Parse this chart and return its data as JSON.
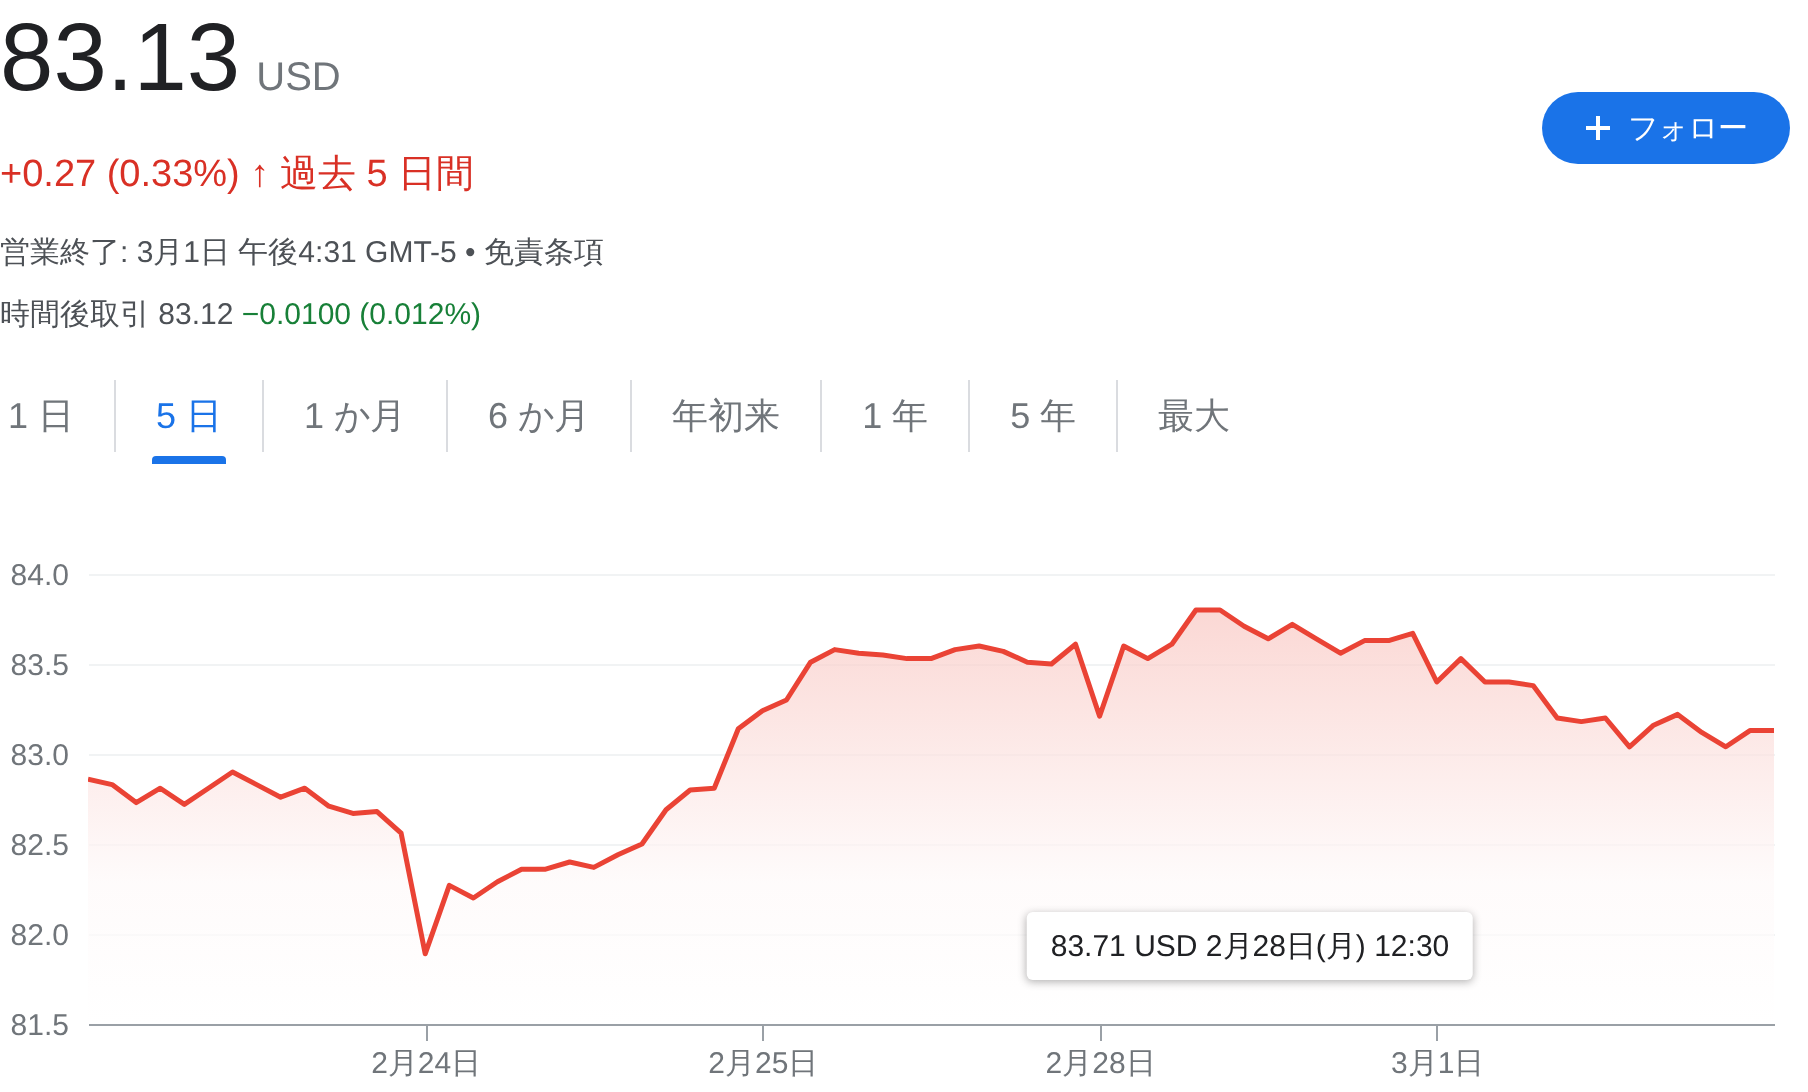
{
  "chart_data": {
    "type": "area",
    "title": "83.13",
    "subtitle": "+0.27 (0.33%) ↑ 過去 5 日間",
    "annotations": [
      "USD",
      "営業終了: 3月1日 午後4:31 GMT-5 • 免責条項",
      "時間後取引 83.12",
      "−0.0100 (0.012%)",
      "フォロー",
      "1 日",
      "5 日",
      "1 か月",
      "6 か月",
      "年初来",
      "1 年",
      "5 年",
      "最大",
      "83.71 USD  2月28日(月) 12:30"
    ],
    "categories": [
      null,
      null,
      null,
      null,
      null,
      null,
      null,
      null,
      null,
      null,
      null,
      null,
      null,
      null,
      "2月24日",
      null,
      null,
      null,
      null,
      null,
      null,
      null,
      null,
      null,
      null,
      null,
      null,
      null,
      "2月25日",
      null,
      null,
      null,
      null,
      null,
      null,
      null,
      null,
      null,
      null,
      null,
      null,
      null,
      "2月28日",
      null,
      null,
      null,
      null,
      null,
      null,
      null,
      null,
      null,
      null,
      null,
      null,
      null,
      "3月1日",
      null,
      null,
      null,
      null,
      null,
      null,
      null,
      null,
      null,
      null,
      null,
      null,
      null,
      null
    ],
    "series": [
      {
        "color": "#ea4335",
        "values": [
          82.86,
          82.83,
          82.73,
          82.81,
          82.72,
          82.81,
          82.9,
          82.83,
          82.76,
          82.81,
          82.71,
          82.67,
          82.68,
          82.56,
          81.89,
          82.27,
          82.2,
          82.29,
          82.36,
          82.36,
          82.4,
          82.37,
          82.44,
          82.5,
          82.69,
          82.8,
          82.81,
          83.14,
          83.24,
          83.3,
          83.51,
          83.58,
          83.56,
          83.55,
          83.53,
          83.53,
          83.58,
          83.6,
          83.57,
          83.51,
          83.5,
          83.61,
          83.21,
          83.6,
          83.53,
          83.61,
          83.8,
          83.8,
          83.71,
          83.64,
          83.72,
          83.64,
          83.56,
          83.63,
          83.63,
          83.67,
          83.4,
          83.53,
          83.4,
          83.4,
          83.38,
          83.2,
          83.18,
          83.2,
          83.04,
          83.16,
          83.22,
          83.12,
          83.04,
          83.13,
          83.13
        ]
      }
    ],
    "ylim": [
      81.5,
      84.0
    ],
    "yticks": [
      {
        "value": 81.5,
        "label": "81.5"
      },
      {
        "value": 82,
        "label": "82.0"
      },
      {
        "value": 82.5,
        "label": "82.5"
      },
      {
        "value": 83,
        "label": "83.0"
      },
      {
        "value": 83.5,
        "label": "83.5"
      },
      {
        "value": 84,
        "label": "84.0"
      }
    ],
    "grid": "y"
  }
}
